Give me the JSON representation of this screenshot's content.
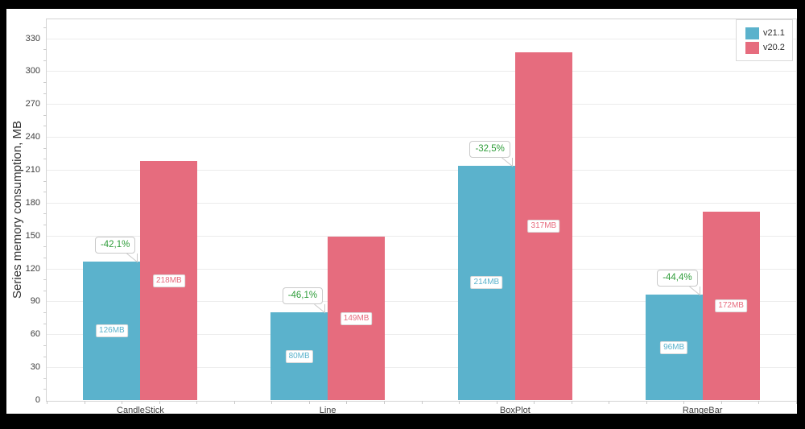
{
  "frame": {
    "background_color": "#000000",
    "panel_color": "#ffffff"
  },
  "chart_data": {
    "type": "bar",
    "title": "",
    "xlabel": "",
    "ylabel": "Series memory consumption, MB",
    "categories": [
      "CandleStick",
      "Line",
      "BoxPlot",
      "RangeBar"
    ],
    "series": [
      {
        "name": "v21.1",
        "color": "#5bb2cc",
        "values": [
          126,
          80,
          214,
          96
        ],
        "point_labels": [
          "126MB",
          "80MB",
          "214MB",
          "96MB"
        ]
      },
      {
        "name": "v20.2",
        "color": "#e66c7e",
        "values": [
          218,
          149,
          317,
          172
        ],
        "point_labels": [
          "218MB",
          "149MB",
          "317MB",
          "172MB"
        ]
      }
    ],
    "annotations": [
      {
        "category": "CandleStick",
        "text": "-42,1%"
      },
      {
        "category": "Line",
        "text": "-46,1%"
      },
      {
        "category": "BoxPlot",
        "text": "-32,5%"
      },
      {
        "category": "RangeBar",
        "text": "-44,4%"
      }
    ],
    "annotation_text_color": "#2f9d3a",
    "yticks": [
      0,
      30,
      60,
      90,
      120,
      150,
      180,
      210,
      240,
      270,
      300,
      330
    ],
    "ylim": [
      0,
      348
    ],
    "y_minor_step": 10,
    "grid": true,
    "gridline_color": "#ececec",
    "axis_border_color": "#d4d4d4",
    "legend_position": "top-right"
  },
  "legend": {
    "items": [
      {
        "label": "v21.1",
        "color": "#5bb2cc"
      },
      {
        "label": "v20.2",
        "color": "#e66c7e"
      }
    ]
  }
}
